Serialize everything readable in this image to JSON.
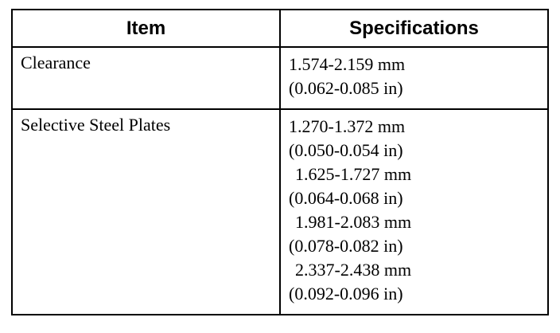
{
  "table": {
    "header": [
      "Item",
      "Specifications"
    ],
    "rows": [
      {
        "item": "Clearance",
        "specs": [
          "1.574-2.159 mm",
          "(0.062-0.085 in)"
        ]
      },
      {
        "item": "Selective Steel Plates",
        "specs": [
          "1.270-1.372 mm",
          "(0.050-0.054 in)",
          "1.625-1.727 mm",
          "(0.064-0.068 in)",
          "1.981-2.083 mm",
          "(0.078-0.082 in)",
          "2.337-2.438 mm",
          "(0.092-0.096 in)"
        ]
      }
    ]
  }
}
